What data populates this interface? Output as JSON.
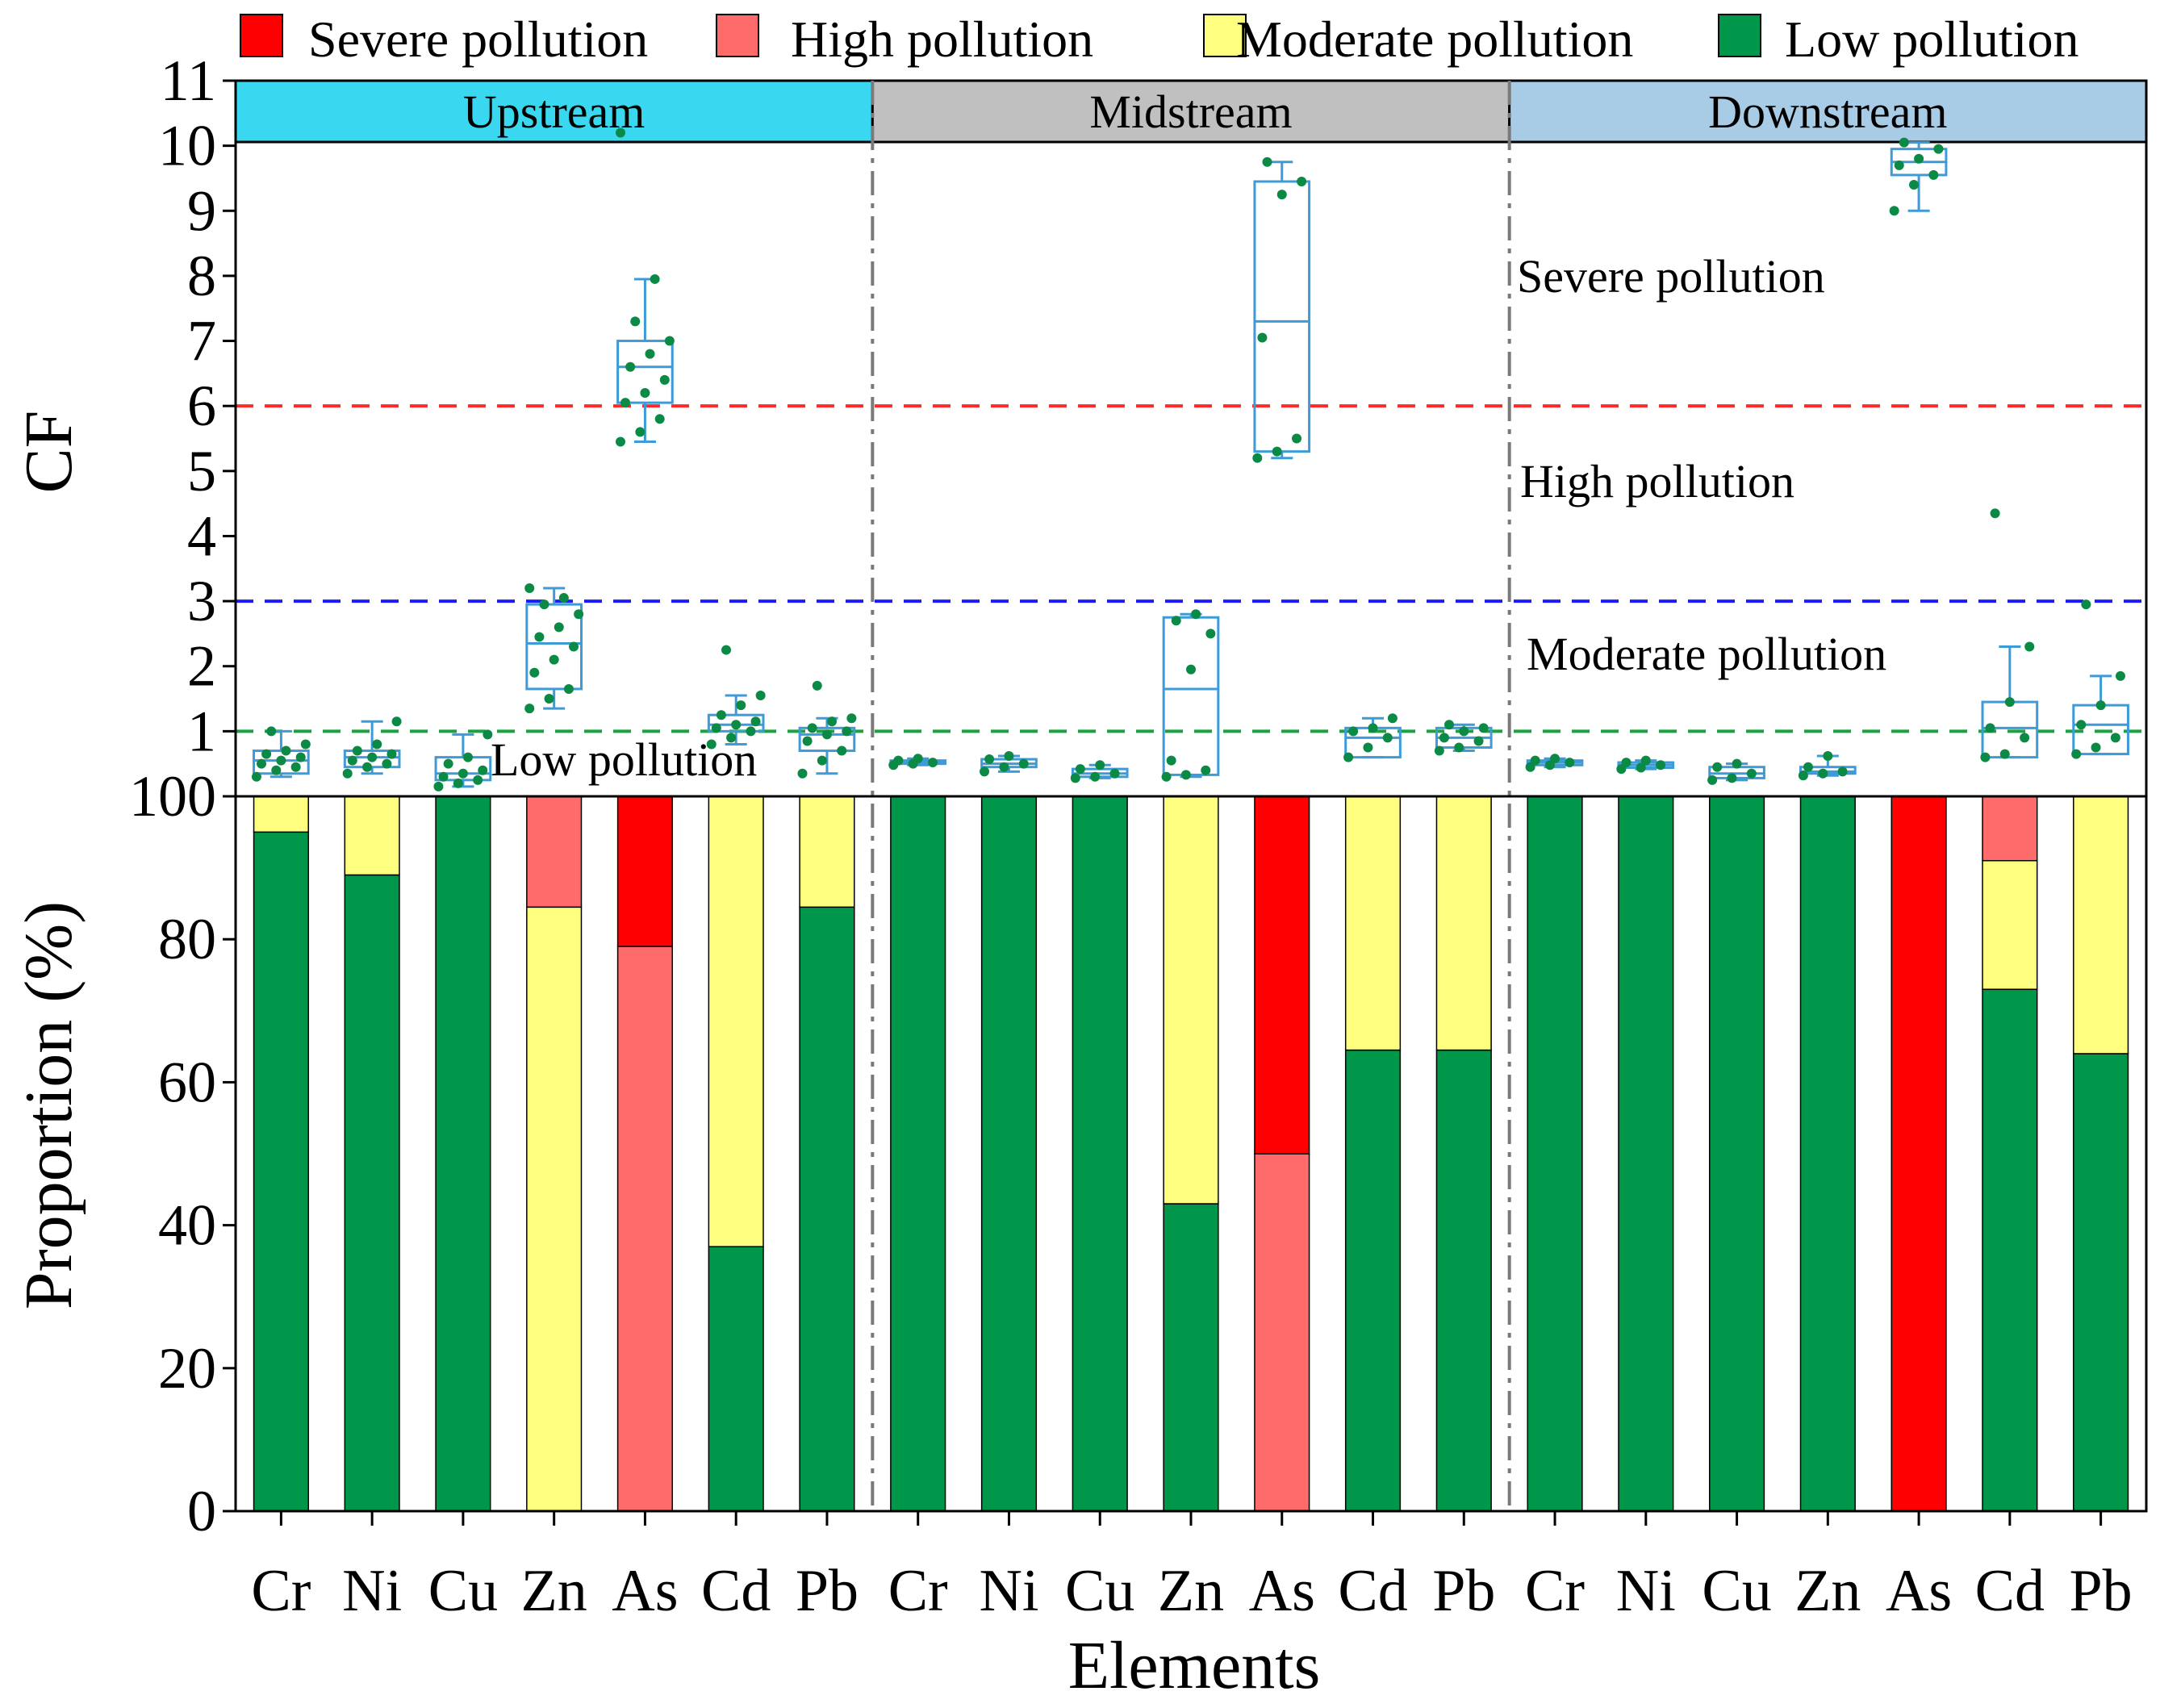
{
  "colors": {
    "severe": "#ff0000",
    "high": "#ff6b6b",
    "moderate": "#ffff7f",
    "low": "#00974a",
    "box": "#3d9bd8",
    "upstream_bg": "#3ad8f0",
    "midstream_bg": "#c0c0c0",
    "downstream_bg": "#a8cbe6",
    "thr_severe": "#ff2a2a",
    "thr_high": "#1a1aff",
    "thr_low": "#17a33e",
    "point": "#0a8a45"
  },
  "legend": [
    {
      "key": "severe",
      "label": "Severe pollution"
    },
    {
      "key": "high",
      "label": "High pollution"
    },
    {
      "key": "moderate",
      "label": "Moderate pollution"
    },
    {
      "key": "low",
      "label": "Low pollution"
    }
  ],
  "chart_data": [
    {
      "type": "box",
      "ylabel": "CF",
      "ylim": [
        0,
        11
      ],
      "yticks": [
        1,
        2,
        3,
        4,
        5,
        6,
        7,
        8,
        9,
        10,
        11
      ],
      "regions": [
        "Upstream",
        "Midstream",
        "Downstream"
      ],
      "thresholds": [
        {
          "value": 6,
          "key": "thr_severe"
        },
        {
          "value": 3,
          "key": "thr_high"
        },
        {
          "value": 1,
          "key": "thr_low"
        }
      ],
      "zone_labels": [
        "Severe pollution",
        "High pollution",
        "Moderate pollution",
        "Low pollution"
      ],
      "boxes": [
        {
          "region": "Upstream",
          "element": "Cr",
          "min": 0.3,
          "q1": 0.35,
          "median": 0.55,
          "q3": 0.7,
          "max": 1.0,
          "points": [
            0.3,
            0.4,
            0.45,
            0.5,
            0.55,
            0.6,
            0.65,
            0.7,
            0.8,
            1.0
          ]
        },
        {
          "region": "Upstream",
          "element": "Ni",
          "min": 0.35,
          "q1": 0.45,
          "median": 0.6,
          "q3": 0.7,
          "max": 1.15,
          "points": [
            0.35,
            0.45,
            0.5,
            0.55,
            0.6,
            0.65,
            0.7,
            0.8,
            1.15
          ]
        },
        {
          "region": "Upstream",
          "element": "Cu",
          "min": 0.15,
          "q1": 0.25,
          "median": 0.35,
          "q3": 0.6,
          "max": 0.95,
          "points": [
            0.15,
            0.2,
            0.25,
            0.3,
            0.35,
            0.4,
            0.5,
            0.6,
            0.95
          ]
        },
        {
          "region": "Upstream",
          "element": "Zn",
          "min": 1.35,
          "q1": 1.65,
          "median": 2.35,
          "q3": 2.95,
          "max": 3.2,
          "points": [
            1.35,
            1.5,
            1.65,
            1.9,
            2.1,
            2.3,
            2.45,
            2.6,
            2.8,
            2.95,
            3.05,
            3.2
          ]
        },
        {
          "region": "Upstream",
          "element": "As",
          "min": 5.45,
          "q1": 6.05,
          "median": 6.6,
          "q3": 7.0,
          "max": 7.95,
          "points": [
            5.45,
            5.6,
            5.8,
            6.05,
            6.2,
            6.4,
            6.6,
            6.8,
            7.0,
            7.3,
            7.95,
            10.2
          ]
        },
        {
          "region": "Upstream",
          "element": "Cd",
          "min": 0.8,
          "q1": 1.0,
          "median": 1.1,
          "q3": 1.25,
          "max": 1.55,
          "points": [
            0.8,
            0.9,
            1.0,
            1.05,
            1.1,
            1.15,
            1.25,
            1.4,
            1.55,
            2.25
          ]
        },
        {
          "region": "Upstream",
          "element": "Pb",
          "min": 0.35,
          "q1": 0.7,
          "median": 0.95,
          "q3": 1.05,
          "max": 1.2,
          "points": [
            0.35,
            0.55,
            0.7,
            0.85,
            0.95,
            1.0,
            1.05,
            1.15,
            1.2,
            1.7
          ]
        },
        {
          "region": "Midstream",
          "element": "Cr",
          "min": 0.48,
          "q1": 0.5,
          "median": 0.52,
          "q3": 0.55,
          "max": 0.58,
          "points": [
            0.48,
            0.5,
            0.52,
            0.55,
            0.58
          ]
        },
        {
          "region": "Midstream",
          "element": "Ni",
          "min": 0.38,
          "q1": 0.45,
          "median": 0.5,
          "q3": 0.57,
          "max": 0.62,
          "points": [
            0.38,
            0.45,
            0.5,
            0.57,
            0.62
          ]
        },
        {
          "region": "Midstream",
          "element": "Cu",
          "min": 0.28,
          "q1": 0.3,
          "median": 0.35,
          "q3": 0.42,
          "max": 0.48,
          "points": [
            0.28,
            0.3,
            0.35,
            0.42,
            0.48
          ]
        },
        {
          "region": "Midstream",
          "element": "Zn",
          "min": 0.3,
          "q1": 0.33,
          "median": 1.65,
          "q3": 2.75,
          "max": 2.8,
          "points": [
            0.3,
            0.33,
            0.4,
            0.55,
            1.95,
            2.5,
            2.7,
            2.8
          ]
        },
        {
          "region": "Midstream",
          "element": "As",
          "min": 5.2,
          "q1": 5.3,
          "median": 7.3,
          "q3": 9.45,
          "max": 9.75,
          "points": [
            5.2,
            5.3,
            5.5,
            7.05,
            9.25,
            9.45,
            9.75
          ]
        },
        {
          "region": "Midstream",
          "element": "Cd",
          "min": 0.6,
          "q1": 0.6,
          "median": 0.9,
          "q3": 1.05,
          "max": 1.2,
          "points": [
            0.6,
            0.75,
            0.9,
            1.0,
            1.05,
            1.2
          ]
        },
        {
          "region": "Midstream",
          "element": "Pb",
          "min": 0.7,
          "q1": 0.75,
          "median": 0.9,
          "q3": 1.05,
          "max": 1.1,
          "points": [
            0.7,
            0.75,
            0.85,
            0.9,
            1.0,
            1.05,
            1.1
          ]
        },
        {
          "region": "Downstream",
          "element": "Cr",
          "min": 0.45,
          "q1": 0.48,
          "median": 0.52,
          "q3": 0.55,
          "max": 0.58,
          "points": [
            0.45,
            0.48,
            0.52,
            0.55,
            0.58
          ]
        },
        {
          "region": "Downstream",
          "element": "Ni",
          "min": 0.42,
          "q1": 0.44,
          "median": 0.48,
          "q3": 0.52,
          "max": 0.55,
          "points": [
            0.42,
            0.44,
            0.48,
            0.52,
            0.55
          ]
        },
        {
          "region": "Downstream",
          "element": "Cu",
          "min": 0.25,
          "q1": 0.28,
          "median": 0.35,
          "q3": 0.45,
          "max": 0.5,
          "points": [
            0.25,
            0.28,
            0.35,
            0.45,
            0.5
          ]
        },
        {
          "region": "Downstream",
          "element": "Zn",
          "min": 0.32,
          "q1": 0.35,
          "median": 0.38,
          "q3": 0.45,
          "max": 0.62,
          "points": [
            0.32,
            0.35,
            0.38,
            0.45,
            0.62
          ]
        },
        {
          "region": "Downstream",
          "element": "As",
          "min": 9.0,
          "q1": 9.55,
          "median": 9.75,
          "q3": 9.95,
          "max": 10.05,
          "points": [
            9.0,
            9.4,
            9.55,
            9.7,
            9.8,
            9.95,
            10.05
          ]
        },
        {
          "region": "Downstream",
          "element": "Cd",
          "min": 0.6,
          "q1": 0.6,
          "median": 1.05,
          "q3": 1.45,
          "max": 2.3,
          "points": [
            0.6,
            0.65,
            0.9,
            1.05,
            1.45,
            2.3,
            4.35
          ]
        },
        {
          "region": "Downstream",
          "element": "Pb",
          "min": 0.65,
          "q1": 0.65,
          "median": 1.1,
          "q3": 1.4,
          "max": 1.85,
          "points": [
            0.65,
            0.75,
            0.9,
            1.1,
            1.4,
            1.85,
            2.95
          ]
        }
      ]
    },
    {
      "type": "stacked_bar",
      "xlabel": "Elements",
      "ylabel": "Proportion (%)",
      "ylim": [
        0,
        100
      ],
      "yticks": [
        0,
        20,
        40,
        60,
        80,
        100
      ],
      "categories": [
        "Cr",
        "Ni",
        "Cu",
        "Zn",
        "As",
        "Cd",
        "Pb",
        "Cr",
        "Ni",
        "Cu",
        "Zn",
        "As",
        "Cd",
        "Pb",
        "Cr",
        "Ni",
        "Cu",
        "Zn",
        "As",
        "Cd",
        "Pb"
      ],
      "series": [
        {
          "name": "Low pollution",
          "key": "low",
          "values": [
            95,
            89,
            100,
            0,
            0,
            37,
            84.5,
            100,
            100,
            100,
            43,
            0,
            64.5,
            64.5,
            100,
            100,
            100,
            100,
            0,
            73,
            64
          ]
        },
        {
          "name": "Moderate pollution",
          "key": "moderate",
          "values": [
            5,
            11,
            0,
            84.5,
            0,
            63,
            15.5,
            0,
            0,
            0,
            57,
            0,
            35.5,
            35.5,
            0,
            0,
            0,
            0,
            0,
            18,
            36
          ]
        },
        {
          "name": "High pollution",
          "key": "high",
          "values": [
            0,
            0,
            0,
            15.5,
            79,
            0,
            0,
            0,
            0,
            0,
            0,
            50,
            0,
            0,
            0,
            0,
            0,
            0,
            0,
            9,
            0
          ]
        },
        {
          "name": "Severe pollution",
          "key": "severe",
          "values": [
            0,
            0,
            0,
            0,
            21,
            0,
            0,
            0,
            0,
            0,
            0,
            50,
            0,
            0,
            0,
            0,
            0,
            0,
            100,
            0,
            0
          ]
        }
      ]
    }
  ]
}
